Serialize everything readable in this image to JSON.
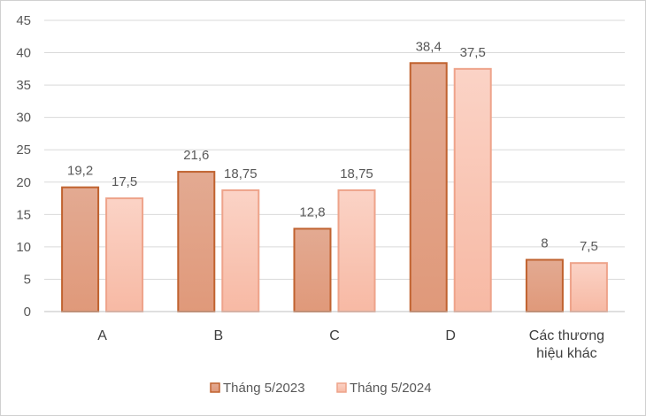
{
  "chart_data": {
    "type": "bar",
    "categories": [
      "A",
      "B",
      "C",
      "D",
      "Các thương hiệu khác"
    ],
    "series": [
      {
        "name": "Tháng 5/2023",
        "values": [
          19.2,
          21.6,
          12.8,
          38.4,
          8
        ],
        "labels": [
          "19,2",
          "21,6",
          "12,8",
          "38,4",
          "8"
        ]
      },
      {
        "name": "Tháng 5/2024",
        "values": [
          17.5,
          18.75,
          18.75,
          37.5,
          7.5
        ],
        "labels": [
          "17,5",
          "18,75",
          "18,75",
          "37,5",
          "7,5"
        ]
      }
    ],
    "yticks": [
      "0",
      "5",
      "10",
      "15",
      "20",
      "25",
      "30",
      "35",
      "40",
      "45"
    ],
    "ylim": [
      0,
      45
    ],
    "grid": true,
    "legend_position": "bottom",
    "colors": {
      "series1_top": "#e3aa92",
      "series1_bottom": "#e0997a",
      "series1_border": "#c0622f",
      "series2_top": "#fbd3c6",
      "series2_bottom": "#f7b9a4",
      "series2_border": "#eea38a",
      "grid": "#d9d9d9",
      "axis": "#bfbfbf"
    }
  }
}
